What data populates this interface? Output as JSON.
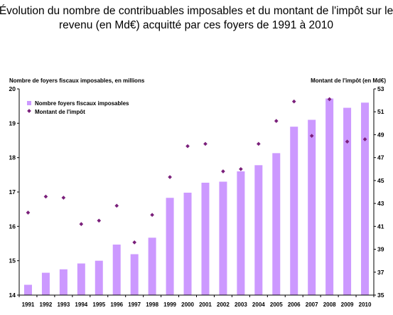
{
  "chart_data": {
    "type": "bar",
    "title_line1": "Évolution du nombre de contribuables imposables et du montant de l'impôt sur le",
    "title_line2": "revenu (en Md€)  acquitté par ces foyers de 1991 à 2010",
    "ylabel_left": "Nombre de foyers fiscaux imposables, en millions",
    "ylabel_right": "Montant de l'impôt (en Md€)",
    "categories": [
      "1991",
      "1992",
      "1993",
      "1994",
      "1995",
      "1996",
      "1997",
      "1998",
      "1999",
      "2000",
      "2001",
      "2002",
      "2003",
      "2004",
      "2005",
      "2006",
      "2007",
      "2008",
      "2009",
      "2010"
    ],
    "series": [
      {
        "name": "Nombre foyers fiscaux imposables",
        "type": "bar",
        "axis": "left",
        "color": "#cc99ff",
        "values": [
          14.3,
          14.65,
          14.75,
          14.92,
          15.0,
          15.47,
          15.19,
          15.67,
          16.83,
          16.98,
          17.27,
          17.3,
          17.6,
          17.78,
          18.13,
          18.9,
          19.1,
          19.72,
          19.45,
          19.6
        ]
      },
      {
        "name": "Montant de l'impôt",
        "type": "scatter",
        "axis": "right",
        "color": "#7a1f7a",
        "values": [
          42.2,
          43.6,
          43.5,
          41.2,
          41.5,
          42.8,
          39.6,
          42.0,
          45.3,
          48.0,
          48.2,
          45.8,
          46.0,
          48.2,
          50.2,
          51.9,
          48.9,
          52.1,
          48.4,
          48.6
        ]
      }
    ],
    "ylim_left": [
      14,
      20
    ],
    "yticks_left": [
      "14",
      "15",
      "16",
      "17",
      "18",
      "19",
      "20"
    ],
    "ylim_right": [
      35,
      53
    ],
    "yticks_right": [
      "35",
      "37",
      "39",
      "41",
      "43",
      "45",
      "47",
      "49",
      "51",
      "53"
    ],
    "legend_placement": "top-left",
    "grid": false
  }
}
